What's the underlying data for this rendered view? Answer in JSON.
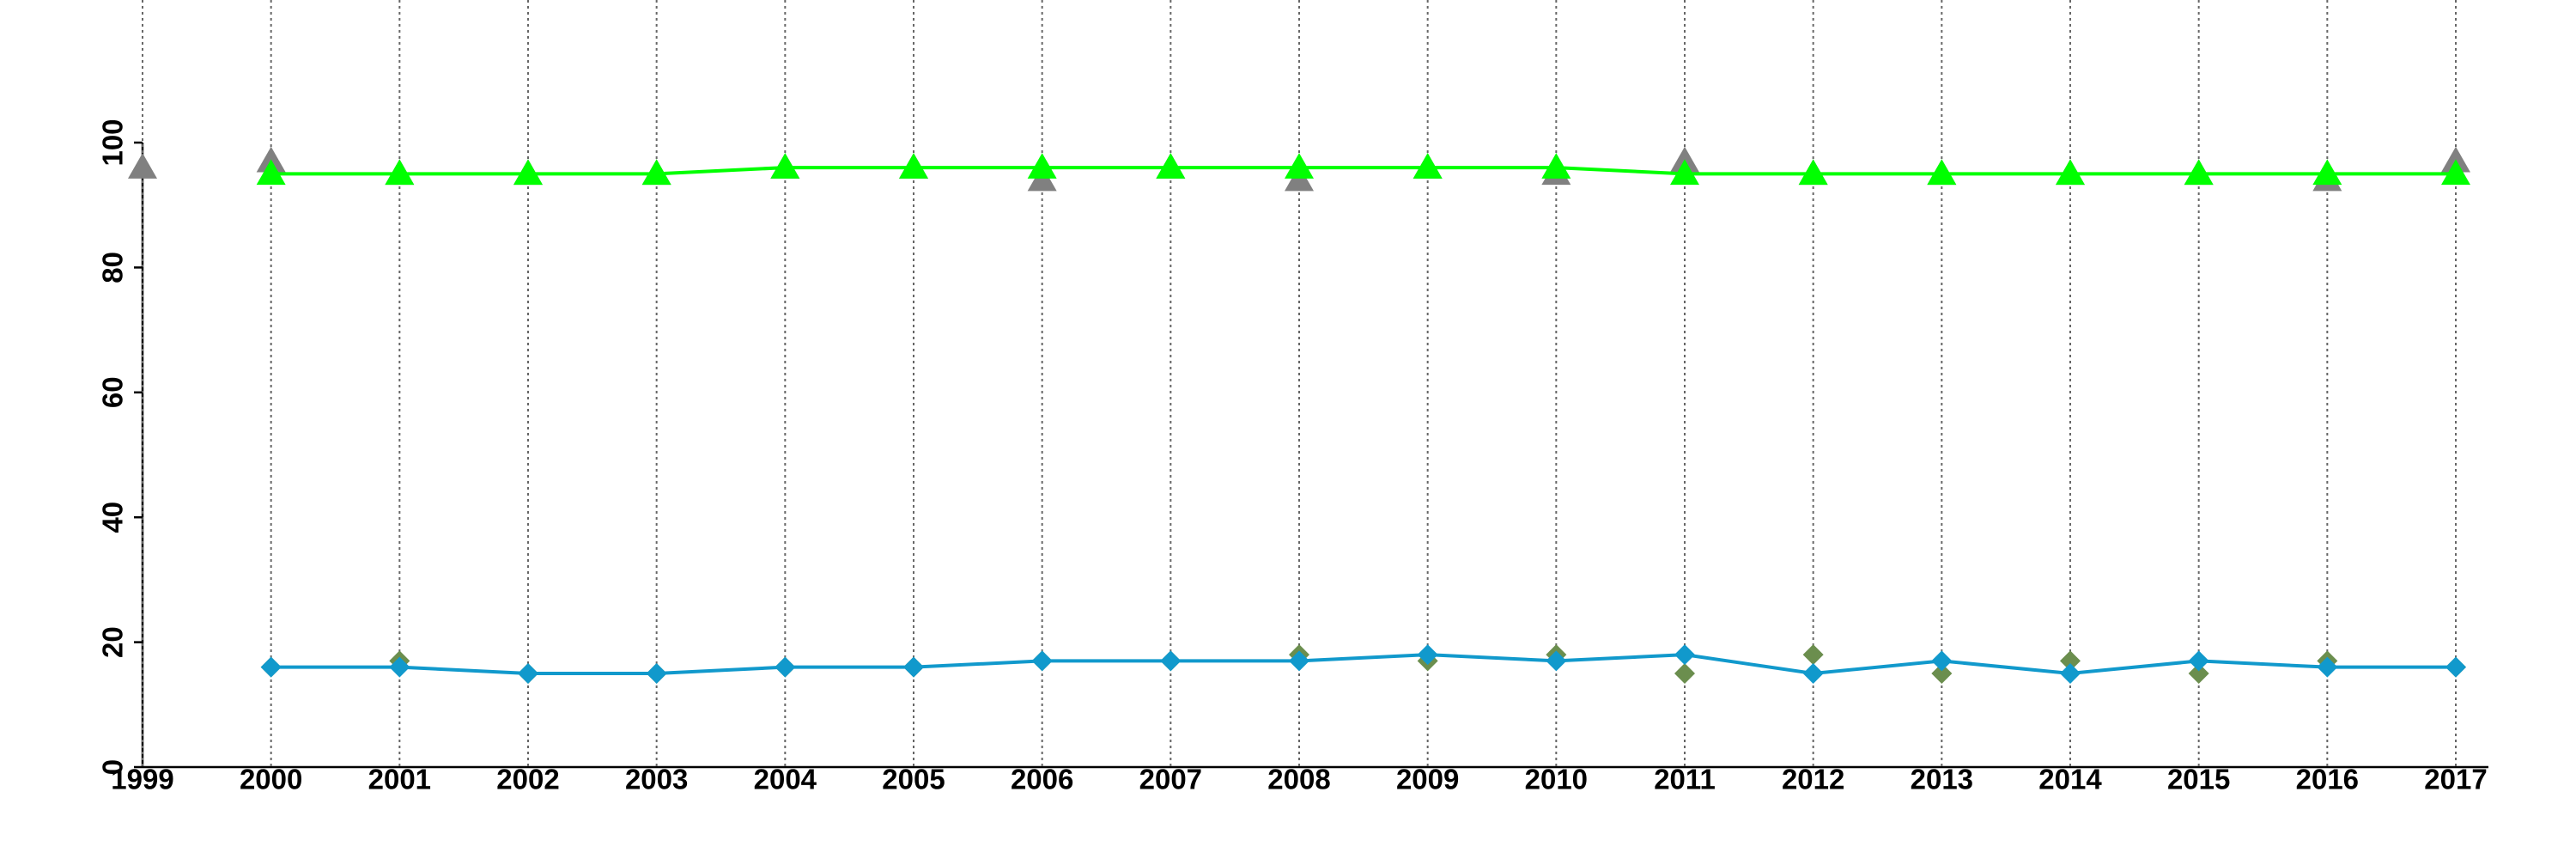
{
  "chart_data": {
    "type": "line",
    "x": [
      1999,
      2000,
      2001,
      2002,
      2003,
      2004,
      2005,
      2006,
      2007,
      2008,
      2009,
      2010,
      2011,
      2012,
      2013,
      2014,
      2015,
      2016,
      2017
    ],
    "xlim": [
      1999,
      2017
    ],
    "xticks": [
      1999,
      2000,
      2001,
      2002,
      2003,
      2004,
      2005,
      2006,
      2007,
      2008,
      2009,
      2010,
      2011,
      2012,
      2013,
      2014,
      2015,
      2016,
      2017
    ],
    "ylim": [
      0,
      100
    ],
    "yticks": [
      0,
      20,
      40,
      60,
      80,
      100
    ],
    "grid": "x",
    "series": [
      {
        "color": "#808080",
        "marker": "triangle",
        "line": false,
        "values": [
          96,
          97,
          95,
          95,
          95,
          96,
          96,
          94,
          96,
          94,
          96,
          95,
          97,
          95,
          95,
          95,
          95,
          94,
          97
        ]
      },
      {
        "color": "#00ff00",
        "marker": "triangle",
        "line": true,
        "values": [
          null,
          95,
          95,
          95,
          95,
          96,
          96,
          96,
          96,
          96,
          96,
          96,
          95,
          95,
          95,
          95,
          95,
          95,
          95
        ]
      },
      {
        "color": "#6b8e4e",
        "marker": "diamond",
        "line": false,
        "values": [
          null,
          16,
          17,
          15,
          15,
          16,
          16,
          17,
          17,
          18,
          17,
          18,
          15,
          18,
          15,
          17,
          15,
          17,
          16
        ]
      },
      {
        "color": "#1199cc",
        "marker": "diamond",
        "line": true,
        "values": [
          null,
          16,
          16,
          15,
          15,
          16,
          16,
          17,
          17,
          17,
          18,
          17,
          18,
          15,
          17,
          15,
          17,
          16,
          16
        ]
      }
    ]
  }
}
